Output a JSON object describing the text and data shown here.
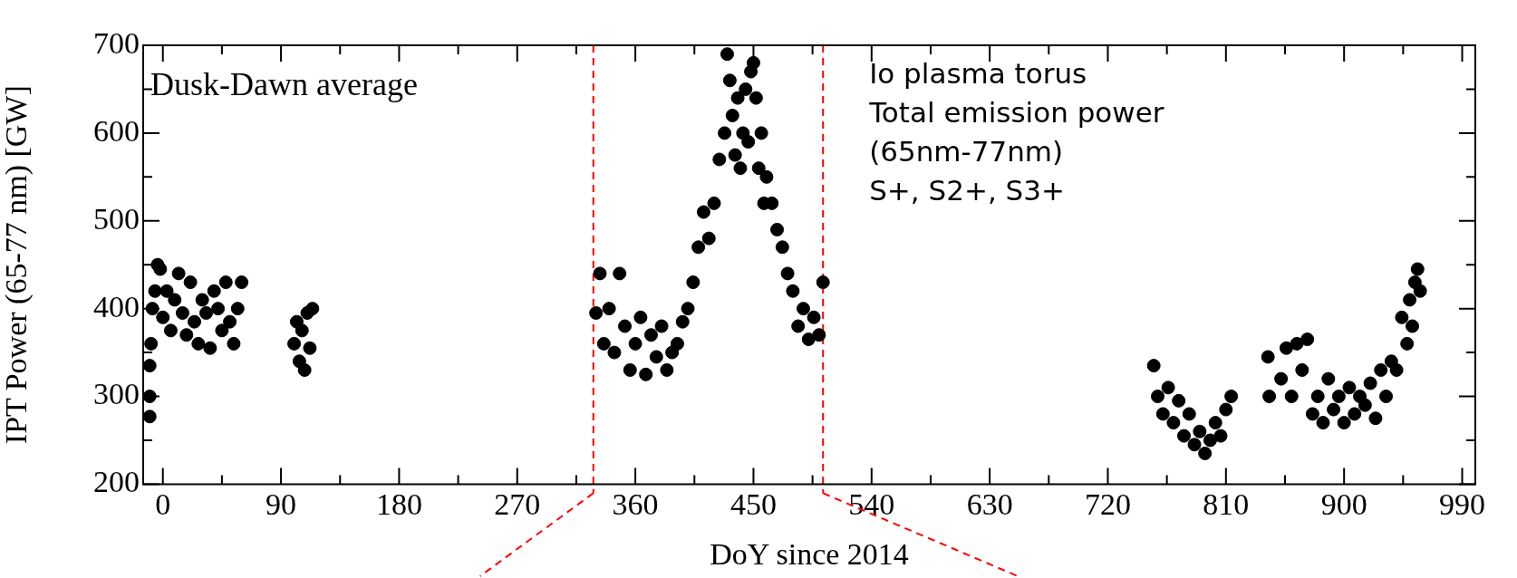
{
  "chart_data": {
    "type": "scatter",
    "xlabel": "DoY since 2014",
    "ylabel": "IPT Power (65-77 nm) [GW]",
    "annotations": [
      "Dusk-Dawn average",
      "Io plasma torus\nTotal emission power\n(65nm-77nm)\nS+, S2+, S3+"
    ],
    "xlim": [
      -15,
      1000
    ],
    "xticks": [
      0,
      {
        "value": 45,
        "label": null
      },
      90,
      {
        "value": 135,
        "label": null
      },
      180,
      {
        "value": 225,
        "label": null
      },
      270,
      {
        "value": 315,
        "label": null
      },
      360,
      {
        "value": 405,
        "label": null
      },
      450,
      {
        "value": 495,
        "label": null
      },
      540,
      {
        "value": 585,
        "label": null
      },
      630,
      {
        "value": 675,
        "label": null
      },
      720,
      {
        "value": 765,
        "label": null
      },
      810,
      {
        "value": 855,
        "label": null
      },
      900,
      {
        "value": 945,
        "label": null
      },
      990
    ],
    "ylim": [
      200,
      700
    ],
    "yticks": [
      200,
      {
        "value": 250,
        "label": null
      },
      300,
      {
        "value": 350,
        "label": null
      },
      400,
      {
        "value": 450,
        "label": null
      },
      500,
      {
        "value": 550,
        "label": null
      },
      600,
      {
        "value": 650,
        "label": null
      },
      700
    ],
    "grid": false,
    "legend": false,
    "marker": "circle",
    "ref_lines": [
      {
        "axis": "x",
        "value": 328,
        "color": "#ff0000",
        "line_style": "dashed"
      },
      {
        "axis": "x",
        "value": 503,
        "color": "#ff0000",
        "line_style": "dashed"
      }
    ],
    "series": [
      {
        "color": "#000000",
        "x": [
          -10,
          -10,
          -10,
          -9,
          -8,
          -6,
          -4,
          -2,
          0,
          3,
          6,
          9,
          12,
          15,
          18,
          21,
          24,
          27,
          30,
          33,
          36,
          39,
          42,
          45,
          48,
          51,
          54,
          57,
          60,
          100,
          102,
          104,
          106,
          108,
          110,
          112,
          114,
          330,
          333,
          336,
          340,
          344,
          348,
          352,
          356,
          360,
          364,
          368,
          372,
          376,
          380,
          384,
          388,
          392,
          396,
          400,
          404,
          408,
          412,
          416,
          420,
          424,
          428,
          430,
          432,
          434,
          436,
          438,
          440,
          442,
          444,
          446,
          448,
          450,
          452,
          454,
          456,
          458,
          460,
          464,
          468,
          472,
          476,
          480,
          484,
          488,
          492,
          496,
          500,
          503,
          755,
          758,
          762,
          766,
          770,
          774,
          778,
          782,
          786,
          790,
          794,
          798,
          802,
          806,
          810,
          814,
          842,
          843,
          852,
          856,
          860,
          864,
          868,
          872,
          876,
          880,
          884,
          888,
          892,
          896,
          900,
          904,
          908,
          912,
          916,
          920,
          924,
          928,
          932,
          936,
          940,
          944,
          948,
          950,
          952,
          954,
          956,
          958
        ],
        "values": [
          277,
          300,
          335,
          360,
          400,
          420,
          450,
          445,
          390,
          420,
          375,
          410,
          440,
          395,
          370,
          430,
          385,
          360,
          410,
          395,
          355,
          420,
          400,
          375,
          430,
          385,
          360,
          400,
          430,
          360,
          385,
          340,
          375,
          330,
          395,
          355,
          400,
          395,
          440,
          360,
          400,
          350,
          440,
          380,
          330,
          360,
          390,
          325,
          370,
          345,
          380,
          330,
          350,
          360,
          385,
          400,
          430,
          470,
          510,
          480,
          520,
          570,
          600,
          690,
          660,
          620,
          575,
          640,
          560,
          600,
          650,
          590,
          670,
          680,
          640,
          560,
          600,
          520,
          550,
          520,
          490,
          470,
          440,
          420,
          380,
          400,
          365,
          390,
          370,
          430,
          335,
          300,
          280,
          310,
          270,
          295,
          255,
          280,
          245,
          260,
          235,
          250,
          270,
          255,
          285,
          300,
          345,
          300,
          320,
          355,
          300,
          360,
          330,
          365,
          280,
          300,
          270,
          320,
          285,
          300,
          270,
          310,
          280,
          300,
          290,
          315,
          275,
          330,
          300,
          340,
          330,
          390,
          360,
          410,
          380,
          430,
          445,
          420
        ]
      }
    ]
  }
}
